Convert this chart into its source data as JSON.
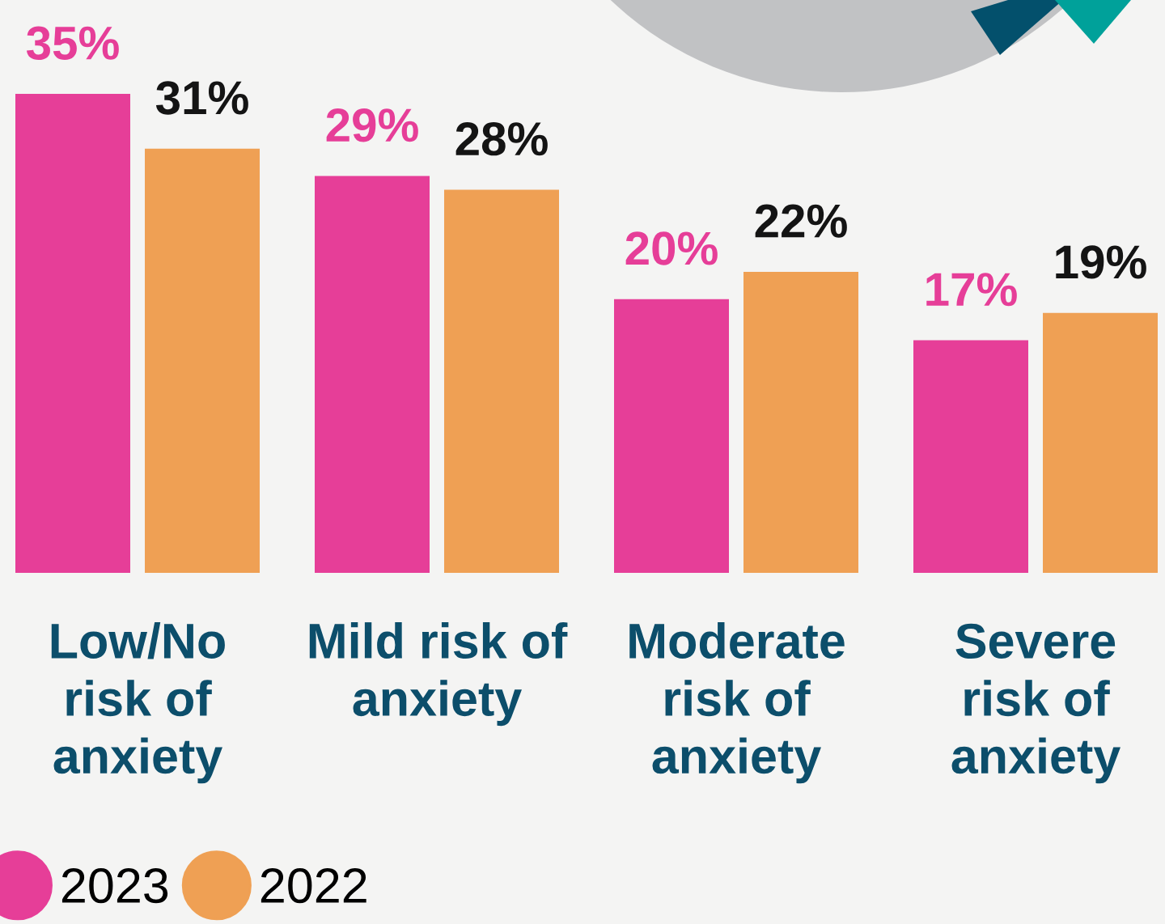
{
  "chart_data": {
    "type": "bar",
    "categories": [
      "Low/No\nrisk of\nanxiety",
      "Mild risk of\nanxiety",
      "Moderate\nrisk of\nanxiety",
      "Severe\nrisk of\nanxiety"
    ],
    "series": [
      {
        "name": "2023",
        "color": "#e63e98",
        "values": [
          35,
          29,
          20,
          17
        ],
        "value_labels": [
          "35%",
          "29%",
          "20%",
          "17%"
        ]
      },
      {
        "name": "2022",
        "color": "#efa054",
        "values": [
          31,
          28,
          22,
          19
        ],
        "value_labels": [
          "31%",
          "28%",
          "22%",
          "19%"
        ]
      }
    ],
    "legend": "bottom left",
    "tick_labels": "x"
  }
}
